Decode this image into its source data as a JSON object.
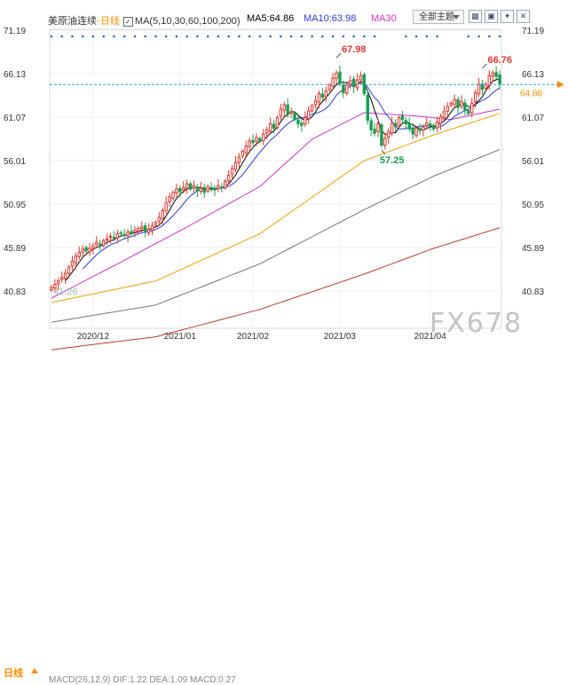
{
  "header": {
    "symbol": "美原油连续",
    "timeframe": "日线",
    "ma_params": "MA(5,10,30,60,100,200)",
    "ma5": "MA5:64.86",
    "ma10": "MA10:63.98",
    "ma30": "MA30",
    "topics_select": "全部主题",
    "icon_names": [
      "grid-icon",
      "chart-icon",
      "settings-icon",
      "close-icon"
    ]
  },
  "footer": {
    "period": "日线",
    "sub_indicator": "MACD(26,12,9) DIF:1.22 DEA:1.09 MACD:0.27",
    "watermark": "FX678"
  },
  "colors": {
    "up": "#e0362c",
    "down": "#1a9e50",
    "ma5": "#000000",
    "ma10": "#2a3bd6",
    "ma30": "#cc33cc",
    "ma60": "#f0a000",
    "ma100": "#777777",
    "ma200": "#c0392b",
    "current": "#ff8c00",
    "marker_dots": "#2b6cb0"
  },
  "chart_data": {
    "type": "candlestick",
    "title": "美原油连续",
    "y_ticks": [
      "71.19",
      "66.13",
      "61.07",
      "56.01",
      "50.95",
      "45.89",
      "40.83"
    ],
    "x_ticks": [
      "2020/12",
      "2021/01",
      "2021/02",
      "2021/03",
      "2021/04"
    ],
    "ylim": [
      38,
      72
    ],
    "grid": true,
    "current_price": "64.86",
    "annotations": [
      {
        "label": "67.98",
        "kind": "high",
        "index": 82,
        "value": 67.98
      },
      {
        "label": "57.25",
        "kind": "low",
        "index": 95,
        "value": 57.25
      },
      {
        "label": "66.76",
        "kind": "high",
        "index": 124,
        "value": 66.76
      },
      {
        "label": "41.26",
        "kind": "low",
        "index": 0,
        "value": 41.26
      }
    ],
    "close": [
      41.26,
      41.6,
      42.0,
      42.4,
      42.9,
      43.6,
      44.3,
      44.9,
      45.3,
      45.7,
      45.5,
      45.8,
      46.1,
      46.5,
      46.2,
      46.7,
      46.9,
      47.2,
      47.0,
      47.5,
      47.6,
      47.3,
      47.7,
      47.5,
      47.9,
      48.1,
      48.3,
      47.8,
      48.0,
      48.4,
      48.8,
      49.4,
      50.2,
      51.1,
      51.8,
      52.3,
      52.7,
      52.4,
      52.9,
      53.3,
      52.7,
      53.1,
      52.5,
      52.8,
      52.3,
      53.0,
      52.8,
      52.6,
      53.1,
      52.9,
      53.6,
      54.3,
      55.1,
      55.8,
      56.4,
      57.1,
      57.7,
      58.3,
      58.1,
      58.7,
      58.3,
      59.1,
      59.6,
      60.3,
      59.8,
      61.0,
      62.0,
      62.5,
      61.4,
      61.7,
      60.8,
      60.3,
      60.1,
      61.0,
      61.8,
      62.4,
      63.0,
      63.8,
      63.4,
      64.1,
      64.8,
      65.6,
      66.2,
      65.0,
      63.9,
      64.8,
      65.3,
      64.6,
      65.4,
      65.9,
      63.8,
      60.7,
      59.6,
      59.2,
      60.3,
      57.8,
      58.6,
      59.4,
      60.4,
      60.0,
      61.0,
      60.8,
      60.3,
      59.7,
      59.1,
      59.8,
      59.5,
      59.9,
      60.4,
      60.1,
      59.7,
      60.5,
      61.1,
      61.7,
      62.3,
      62.7,
      63.1,
      62.2,
      62.9,
      61.9,
      61.5,
      62.7,
      63.9,
      64.9,
      64.3,
      64.9,
      65.9,
      66.2,
      65.8,
      64.9
    ],
    "ma_series": [
      {
        "name": "MA60",
        "values_at_index": {
          "0": 39.5,
          "30": 42.0,
          "60": 47.5,
          "90": 56.0,
          "110": 59.0,
          "129": 61.5
        }
      },
      {
        "name": "MA100",
        "values_at_index": {
          "0": 37.2,
          "30": 39.2,
          "60": 44.0,
          "90": 50.3,
          "110": 54.2,
          "129": 57.3
        }
      },
      {
        "name": "MA200",
        "values_at_index": {
          "0": 34.0,
          "30": 35.5,
          "60": 38.7,
          "90": 42.8,
          "110": 45.8,
          "129": 48.2
        }
      }
    ],
    "ma30_values_at_index": {
      "0": 40.0,
      "20": 44.2,
      "40": 48.5,
      "60": 53.0,
      "75": 58.5,
      "90": 61.6,
      "105": 61.2,
      "115": 60.8,
      "129": 62.0
    }
  }
}
